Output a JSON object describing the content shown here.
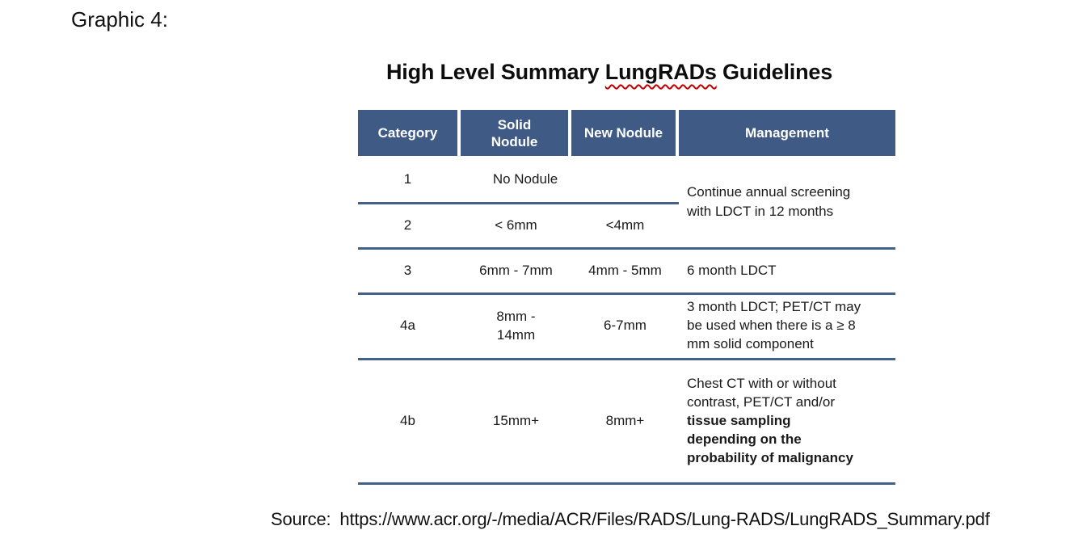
{
  "page": {
    "label": "Graphic 4:"
  },
  "title": {
    "pre": "High Level Summary ",
    "misspelled_word": "LungRADs",
    "post": " Guidelines"
  },
  "colors": {
    "header_bg": "#3E5A85",
    "row_divider": "#44618C",
    "spellcheck_squiggle": "#C00000",
    "header_text": "#FFFFFF",
    "body_text": "#1A1A1A"
  },
  "table": {
    "headers": [
      "Category",
      "Solid Nodule",
      "New Nodule",
      "Management"
    ],
    "rows": [
      {
        "category": "1",
        "nodule_merged": "No Nodule",
        "management": "Continue annual screening with LDCT in 12 months"
      },
      {
        "category": "2",
        "solid_nodule": "< 6mm",
        "new_nodule": "<4mm"
      },
      {
        "category": "3",
        "solid_nodule": "6mm - 7mm",
        "new_nodule": "4mm - 5mm",
        "management": "6 month LDCT"
      },
      {
        "category": "4a",
        "solid_nodule": "8mm - 14mm",
        "new_nodule": "6-7mm",
        "management": "3 month LDCT; PET/CT may be used when there is a ≥ 8 mm solid component"
      },
      {
        "category": "4b",
        "solid_nodule": "15mm+",
        "new_nodule": "8mm+",
        "management_regular": "Chest CT with or without contrast, PET/CT and/or ",
        "management_bold": "tissue sampling depending on the probability of malignancy"
      }
    ]
  },
  "source": {
    "label": "Source:",
    "url": "https://www.acr.org/-/media/ACR/Files/RADS/Lung-RADS/LungRADS_Summary.pdf"
  }
}
